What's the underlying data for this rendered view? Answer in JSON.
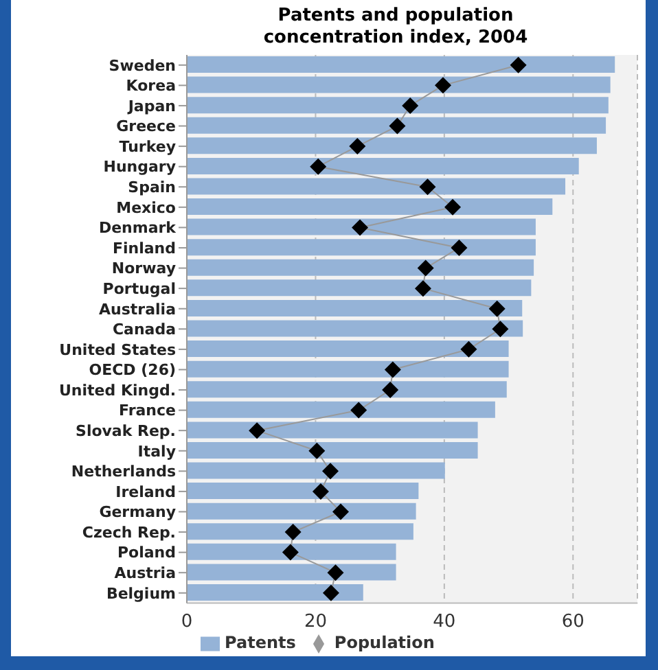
{
  "chart_data": {
    "type": "bar",
    "orientation": "horizontal",
    "title": "Patents and population concentration index, 2004",
    "categories": [
      "Sweden",
      "Korea",
      "Japan",
      "Greece",
      "Turkey",
      "Hungary",
      "Spain",
      "Mexico",
      "Denmark",
      "Finland",
      "Norway",
      "Portugal",
      "Australia",
      "Canada",
      "United States",
      "OECD (26)",
      "United Kingd.",
      "France",
      "Slovak Rep.",
      "Italy",
      "Netherlands",
      "Ireland",
      "Germany",
      "Czech Rep.",
      "Poland",
      "Austria",
      "Belgium"
    ],
    "series": [
      {
        "name": "Patents",
        "color": "#95b3d7",
        "values": [
          66.5,
          65.8,
          65.5,
          65.1,
          63.7,
          60.9,
          58.8,
          56.8,
          54.2,
          54.2,
          53.9,
          53.5,
          52.1,
          52.2,
          50.0,
          50.0,
          49.7,
          47.9,
          45.2,
          45.2,
          40.1,
          36.0,
          35.6,
          35.2,
          32.5,
          32.5,
          27.4
        ]
      },
      {
        "name": "Population",
        "type": "line",
        "color": "#000000",
        "marker": "diamond",
        "values": [
          51.5,
          39.8,
          34.7,
          32.7,
          26.5,
          20.4,
          37.4,
          41.3,
          26.9,
          42.3,
          37.1,
          36.7,
          48.2,
          48.7,
          43.8,
          32.0,
          31.6,
          26.7,
          10.9,
          20.2,
          22.3,
          20.8,
          23.9,
          16.5,
          16.1,
          23.1,
          22.4
        ]
      }
    ],
    "xlim": [
      0,
      70
    ],
    "xticks": [
      0,
      20,
      40,
      60
    ],
    "grid": "x",
    "legend": "bottom"
  }
}
